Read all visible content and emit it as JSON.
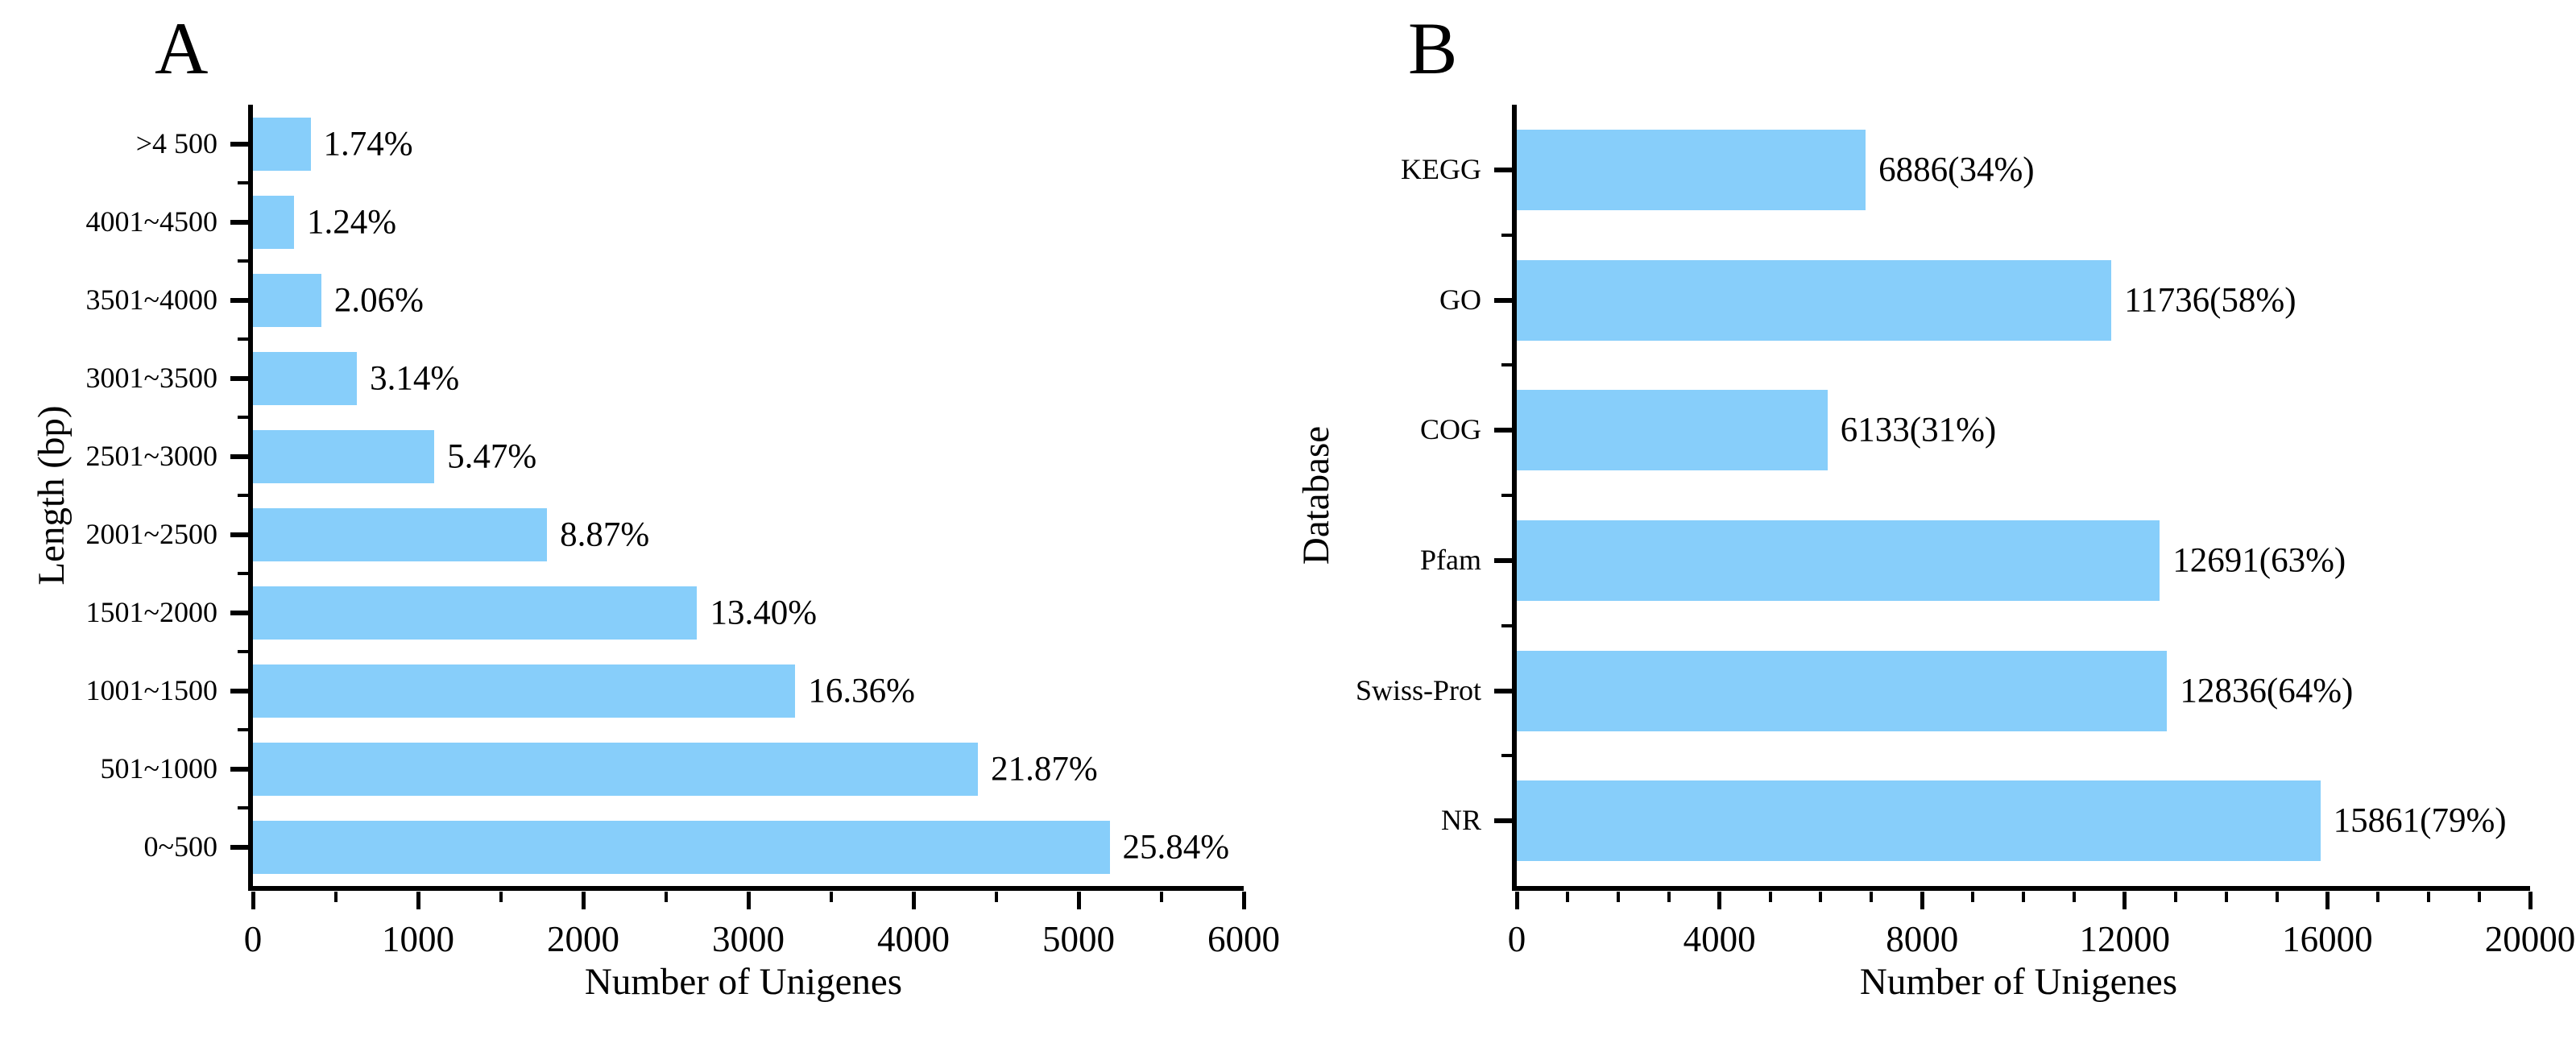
{
  "figure": {
    "background_color": "#ffffff",
    "bar_color": "#87CEFA",
    "text_color": "#000000",
    "panel_a_title": "A",
    "panel_b_title": "B"
  },
  "chart_data": [
    {
      "type": "bar",
      "orientation": "horizontal",
      "title": "A",
      "xlabel": "Number of Unigenes",
      "ylabel": "Length (bp)",
      "categories": [
        ">4 500",
        "4001~4500",
        "3501~4000",
        "3001~3500",
        "2501~3000",
        "2001~2500",
        "1501~2000",
        "1001~1500",
        "501~1000",
        "0~500"
      ],
      "values": [
        349,
        249,
        414,
        630,
        1098,
        1781,
        2690,
        3285,
        4391,
        5188
      ],
      "labels": [
        "1.74%",
        "1.24%",
        "2.06%",
        "3.14%",
        "5.47%",
        "8.87%",
        "13.40%",
        "16.36%",
        "21.87%",
        "25.84%"
      ],
      "xlim": [
        0,
        6000
      ],
      "xticks": [
        0,
        1000,
        2000,
        3000,
        4000,
        5000,
        6000
      ],
      "x_minor_step": 500,
      "bar_color": "#87CEFA",
      "grid": false,
      "legend": null
    },
    {
      "type": "bar",
      "orientation": "horizontal",
      "title": "B",
      "xlabel": "Number of Unigenes",
      "ylabel": "Database",
      "categories": [
        "KEGG",
        "GO",
        "COG",
        "Pfam",
        "Swiss-Prot",
        "NR"
      ],
      "values": [
        6886,
        11736,
        6133,
        12691,
        12836,
        15861
      ],
      "labels": [
        "6886(34%)",
        "11736(58%)",
        "6133(31%)",
        "12691(63%)",
        "12836(64%)",
        "15861(79%)"
      ],
      "xlim": [
        0,
        20000
      ],
      "xticks": [
        0,
        4000,
        8000,
        12000,
        16000,
        20000
      ],
      "x_minor_step": 1000,
      "bar_color": "#87CEFA",
      "grid": false,
      "legend": null
    }
  ]
}
